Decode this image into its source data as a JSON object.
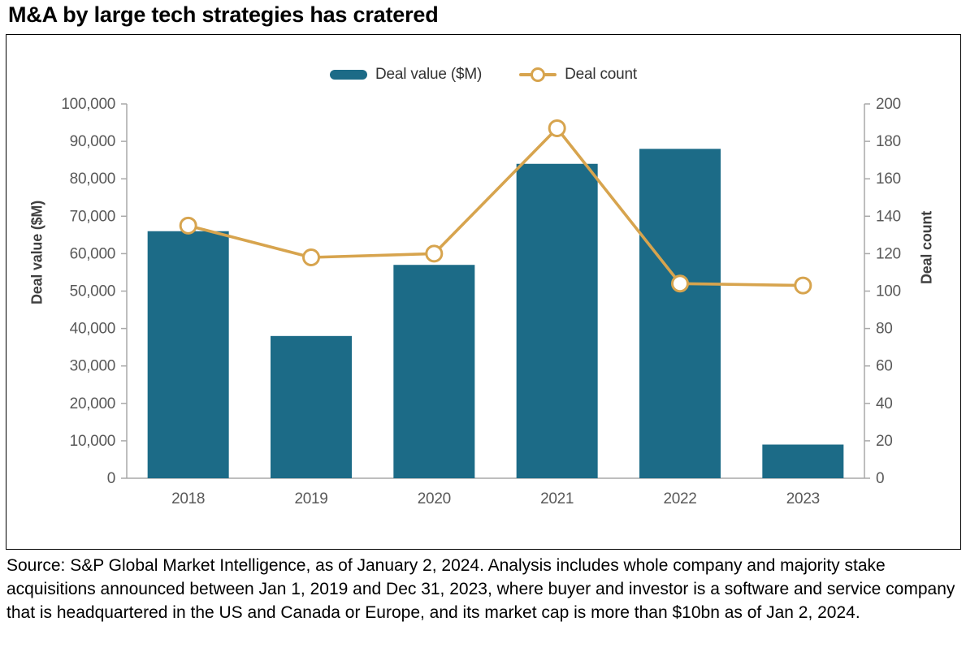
{
  "page": {
    "title": "M&A by large tech strategies has cratered",
    "source_text": "Source: S&P Global Market Intelligence, as of January 2, 2024. Analysis includes whole company and majority stake acquisitions announced between Jan 1, 2019 and Dec 31, 2023, where buyer and investor is a software and service company that is headquartered in the US and Canada or Europe, and its market cap is more than $10bn as of Jan 2, 2024."
  },
  "chart_data": {
    "type": "bar",
    "title": "",
    "categories": [
      "2018",
      "2019",
      "2020",
      "2021",
      "2022",
      "2023"
    ],
    "series": [
      {
        "name": "Deal value ($M)",
        "kind": "bar",
        "axis": "left",
        "color": "#1c6b87",
        "values": [
          66000,
          38000,
          57000,
          84000,
          88000,
          9000
        ]
      },
      {
        "name": "Deal count",
        "kind": "line",
        "axis": "right",
        "color": "#d7a44e",
        "values": [
          135,
          118,
          120,
          187,
          104,
          103
        ]
      }
    ],
    "left_axis": {
      "label": "Deal value ($M)",
      "min": 0,
      "max": 100000,
      "step": 10000,
      "tick_labels": [
        "0",
        "10,000",
        "20,000",
        "30,000",
        "40,000",
        "50,000",
        "60,000",
        "70,000",
        "80,000",
        "90,000",
        "100,000"
      ]
    },
    "right_axis": {
      "label": "Deal count",
      "min": 0,
      "max": 200,
      "step": 20,
      "tick_labels": [
        "0",
        "20",
        "40",
        "60",
        "80",
        "100",
        "120",
        "140",
        "160",
        "180",
        "200"
      ]
    },
    "legend_position": "top",
    "grid": false
  },
  "colors": {
    "bar": "#1c6b87",
    "line": "#d7a44e",
    "marker_fill": "#ffffff",
    "axis_line": "#a9a9a9",
    "tick_text": "#595959",
    "legend_text": "#333333",
    "box_border": "#000000"
  }
}
